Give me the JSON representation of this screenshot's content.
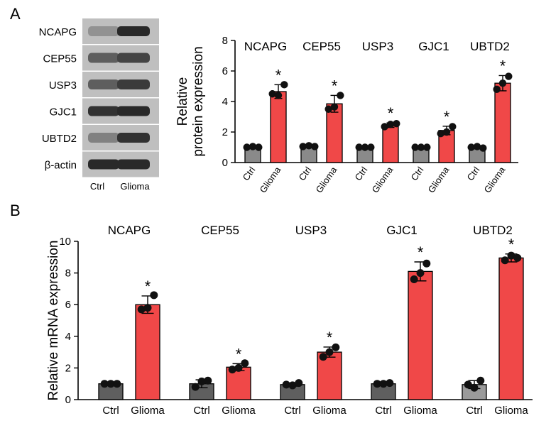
{
  "panels": {
    "a": "A",
    "b": "B"
  },
  "blot": {
    "rows": [
      {
        "label": "NCAPG",
        "ctrl": 0.25,
        "glioma": 0.85
      },
      {
        "label": "CEP55",
        "ctrl": 0.55,
        "glioma": 0.7
      },
      {
        "label": "USP3",
        "ctrl": 0.55,
        "glioma": 0.75
      },
      {
        "label": "GJC1",
        "ctrl": 0.8,
        "glioma": 0.85
      },
      {
        "label": "UBTD2",
        "ctrl": 0.35,
        "glioma": 0.8
      },
      {
        "label": "β-actin",
        "ctrl": 0.85,
        "glioma": 0.85
      }
    ],
    "lanes": [
      "Ctrl",
      "Glioma"
    ]
  },
  "chart_data": [
    {
      "type": "bar",
      "panel": "A",
      "groups": [
        "NCAPG",
        "CEP55",
        "USP3",
        "GJC1",
        "UBTD2"
      ],
      "categories": [
        "Ctrl",
        "Glioma"
      ],
      "ylabel_lines": [
        "Relative",
        "protein expression"
      ],
      "ylim": [
        0,
        8
      ],
      "yticks": [
        "0",
        "2",
        "4",
        "6",
        "8"
      ],
      "values": {
        "Ctrl": [
          1.0,
          1.05,
          1.0,
          1.0,
          1.0
        ],
        "Glioma": [
          4.65,
          3.85,
          2.45,
          2.1,
          5.2
        ]
      },
      "errors": {
        "Ctrl": [
          0.08,
          0.08,
          0.06,
          0.06,
          0.1
        ],
        "Glioma": [
          0.45,
          0.55,
          0.15,
          0.28,
          0.5
        ]
      },
      "points": {
        "Ctrl": [
          [
            1.0,
            1.05,
            1.0
          ],
          [
            1.05,
            1.1,
            1.05
          ],
          [
            1.0,
            1.0,
            1.0
          ],
          [
            1.0,
            1.0,
            1.0
          ],
          [
            1.0,
            1.05,
            0.95
          ]
        ],
        "Glioma": [
          [
            4.5,
            4.4,
            5.1
          ],
          [
            3.5,
            3.65,
            4.4
          ],
          [
            2.35,
            2.5,
            2.55
          ],
          [
            1.9,
            2.0,
            2.35
          ],
          [
            4.8,
            5.2,
            5.65
          ]
        ]
      },
      "significance": "*",
      "colors": {
        "Ctrl": "#8a8a8a",
        "Glioma": "#f04848"
      }
    },
    {
      "type": "bar",
      "panel": "B",
      "groups": [
        "NCAPG",
        "CEP55",
        "USP3",
        "GJC1",
        "UBTD2"
      ],
      "categories": [
        "Ctrl",
        "Glioma"
      ],
      "ylabel": "Relative mRNA expression",
      "ylim": [
        0,
        10
      ],
      "yticks": [
        "0",
        "2",
        "4",
        "6",
        "8",
        "10"
      ],
      "values": {
        "Ctrl": [
          1.0,
          1.0,
          0.95,
          1.0,
          0.95
        ],
        "Glioma": [
          6.0,
          2.05,
          3.0,
          8.1,
          8.95
        ]
      },
      "errors": {
        "Ctrl": [
          0.06,
          0.25,
          0.1,
          0.06,
          0.25
        ],
        "Glioma": [
          0.55,
          0.22,
          0.32,
          0.6,
          0.25
        ]
      },
      "points": {
        "Ctrl": [
          [
            1.0,
            1.0,
            1.0
          ],
          [
            0.8,
            1.15,
            1.2
          ],
          [
            0.95,
            0.9,
            1.05
          ],
          [
            1.0,
            1.0,
            1.05
          ],
          [
            0.95,
            0.75,
            1.2
          ]
        ],
        "Glioma": [
          [
            5.7,
            5.8,
            6.6
          ],
          [
            1.9,
            2.0,
            2.3
          ],
          [
            2.7,
            3.0,
            3.3
          ],
          [
            7.6,
            8.0,
            8.6
          ],
          [
            8.8,
            9.1,
            8.95
          ]
        ]
      },
      "significance": "*",
      "colors": {
        "Ctrl": "#5f5f5f",
        "Glioma": "#f04848",
        "Ctrl_last": "#9a9a9a"
      }
    }
  ]
}
